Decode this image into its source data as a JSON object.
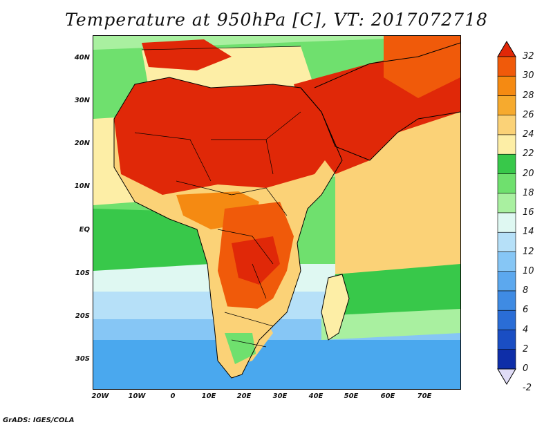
{
  "title": "Temperature at 950hPa [C], VT: 2017072718",
  "credit": "GrADS: IGES/COLA",
  "map": {
    "lat_labels": [
      "40N",
      "30N",
      "20N",
      "10N",
      "EQ",
      "10S",
      "20S",
      "30S"
    ],
    "lon_labels": [
      "20W",
      "10W",
      "0",
      "10E",
      "20E",
      "30E",
      "40E",
      "50E",
      "60E",
      "70E"
    ]
  },
  "colorbar": {
    "levels": [
      "32",
      "30",
      "28",
      "26",
      "24",
      "22",
      "20",
      "18",
      "16",
      "14",
      "12",
      "10",
      "8",
      "6",
      "4",
      "2",
      "0",
      "-2"
    ],
    "colors": [
      "#e02808",
      "#f05a0a",
      "#f58a12",
      "#f6aa2e",
      "#fbd277",
      "#fdeea6",
      "#38c84a",
      "#6fe06e",
      "#a9f0a0",
      "#dff8f2",
      "#b6e0f8",
      "#86c6f5",
      "#5ca8ee",
      "#3f8be3",
      "#2a6dd6",
      "#1a4ec3",
      "#0e2ea8",
      "#10186e"
    ]
  }
}
